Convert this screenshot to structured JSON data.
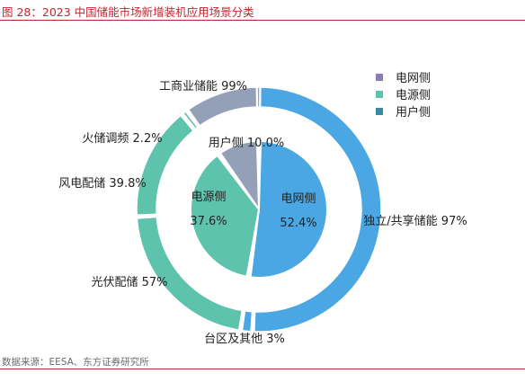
{
  "title": "图 28：2023 中国储能市场新增装机应用场景分类",
  "source": "数据来源：EESA、东方证券研究所",
  "legend": [
    {
      "label": "电网侧",
      "color": "#8d7bb6"
    },
    {
      "label": "电源侧",
      "color": "#5dc3ad"
    },
    {
      "label": "用户侧",
      "color": "#3b8aa3"
    }
  ],
  "chart_data": {
    "type": "pie",
    "title": "2023 中国储能市场新增装机应用场景分类",
    "inner": [
      {
        "group": "电网侧",
        "name": "电网侧",
        "value": 52.4,
        "color": "#4aa7e3"
      },
      {
        "group": "电源侧",
        "name": "电源侧",
        "value": 37.6,
        "color": "#5dc3ad"
      },
      {
        "group": "用户侧",
        "name": "用户侧",
        "value": 10.0,
        "color": "#93a0b7"
      }
    ],
    "outer": [
      {
        "group": "电网侧",
        "name": "独立/共享储能",
        "label": "独立/共享储能 97%",
        "value": 97,
        "color": "#4aa7e3"
      },
      {
        "group": "电网侧",
        "name": "台区及其他",
        "label": "台区及其他 3%",
        "value": 3,
        "color": "#4aa7e3"
      },
      {
        "group": "电源侧",
        "name": "光伏配储",
        "label": "光伏配储 57%",
        "value": 57,
        "color": "#5dc3ad"
      },
      {
        "group": "电源侧",
        "name": "风电配储",
        "label": "风电配储 39.8%",
        "value": 39.8,
        "color": "#5dc3ad"
      },
      {
        "group": "电源侧",
        "name": "火储调频",
        "label": "火储调频 2.2%",
        "value": 2.2,
        "color": "#5dc3ad"
      },
      {
        "group": "用户侧",
        "name": "工商业储能",
        "label": "工商业储能 99%",
        "value": 99,
        "color": "#93a0b7"
      },
      {
        "group": "用户侧",
        "name": "其他",
        "label": "",
        "value": 1,
        "color": "#93a0b7"
      }
    ],
    "inner_labels": [
      {
        "name": "电网侧",
        "value_text": "52.4%"
      },
      {
        "name": "电源侧",
        "value_text": "37.6%"
      },
      {
        "name": "用户侧",
        "value_text": "用户侧 10.0%"
      }
    ],
    "legend_position": "top-right"
  }
}
